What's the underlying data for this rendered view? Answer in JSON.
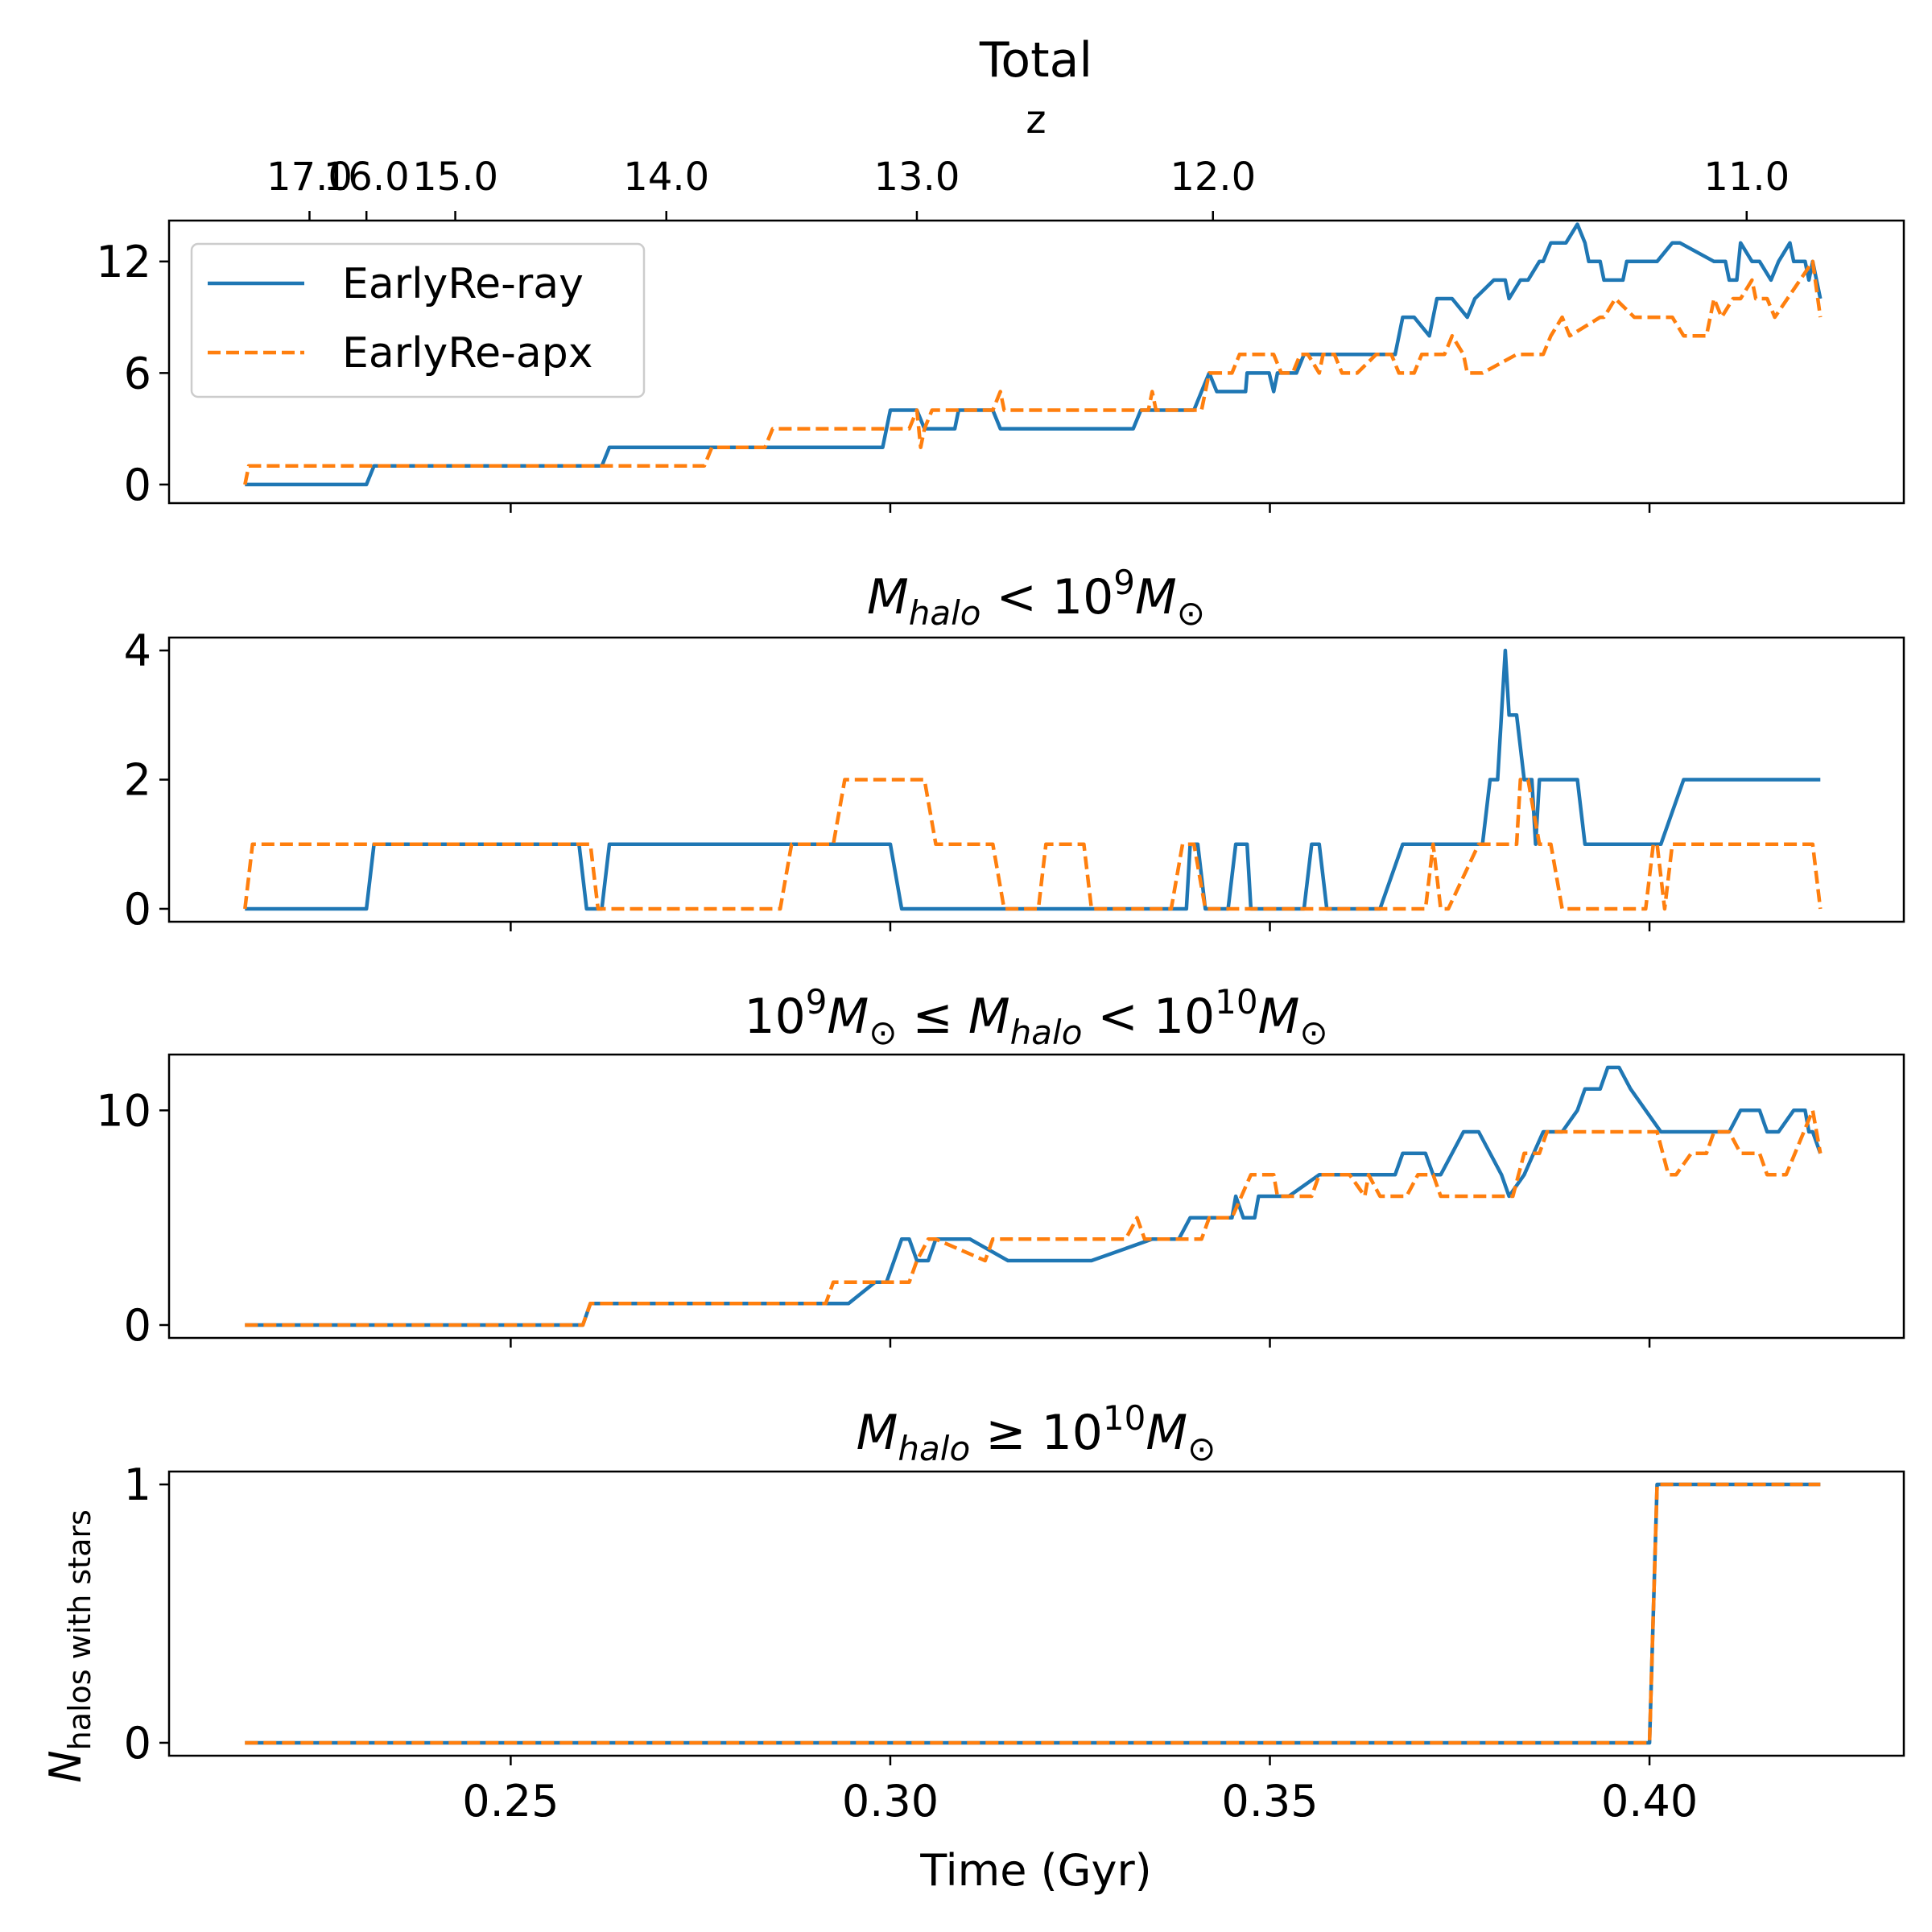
{
  "chart_data": [
    {
      "type": "line",
      "title": "Total",
      "secondary_xlabel": "z",
      "secondary_xticks": [
        "17.0",
        "16.0",
        "15.0",
        "14.0",
        "13.0",
        "12.0",
        "11.0"
      ],
      "secondary_xtick_times": [
        0.2235,
        0.231,
        0.2427,
        0.2705,
        0.3035,
        0.3425,
        0.4128
      ],
      "xlim": [
        0.205,
        0.4335
      ],
      "ylim": [
        -1,
        14.2
      ],
      "yticks": [
        0,
        6,
        12
      ],
      "legend": {
        "position": "top-left",
        "entries": [
          "EarlyRe-ray",
          "EarlyRe-apx"
        ]
      },
      "series": [
        {
          "name": "EarlyRe-ray",
          "color": "#1f77b4",
          "dash": "solid",
          "x": [
            0.215,
            0.231,
            0.232,
            0.262,
            0.263,
            0.299,
            0.3,
            0.3035,
            0.3045,
            0.3085,
            0.309,
            0.3135,
            0.3145,
            0.319,
            0.32,
            0.332,
            0.333,
            0.34,
            0.341,
            0.342,
            0.343,
            0.344,
            0.3468,
            0.347,
            0.3499,
            0.3505,
            0.351,
            0.352,
            0.3535,
            0.3545,
            0.357,
            0.3575,
            0.3665,
            0.3675,
            0.369,
            0.371,
            0.372,
            0.374,
            0.376,
            0.377,
            0.3795,
            0.381,
            0.3815,
            0.383,
            0.384,
            0.3855,
            0.386,
            0.387,
            0.389,
            0.3905,
            0.3915,
            0.392,
            0.3935,
            0.394,
            0.3965,
            0.397,
            0.398,
            0.3985,
            0.399,
            0.401,
            0.403,
            0.404,
            0.4085,
            0.41,
            0.4105,
            0.4115,
            0.412,
            0.4135,
            0.4145,
            0.416,
            0.417,
            0.4185,
            0.419,
            0.4205,
            0.421,
            0.4215,
            0.4225
          ],
          "values": [
            0,
            0,
            1,
            1,
            2,
            2,
            4,
            4,
            3,
            3,
            4,
            4,
            3,
            3,
            3,
            3,
            4,
            4,
            5,
            6,
            5,
            5,
            5,
            6,
            6,
            5,
            6,
            6,
            6,
            7,
            7,
            7,
            7,
            9,
            9,
            8,
            10,
            10,
            9,
            10,
            11,
            11,
            10,
            11,
            11,
            12,
            12,
            13,
            13,
            14,
            13,
            12,
            12,
            11,
            11,
            12,
            12,
            12,
            12,
            12,
            13,
            13,
            12,
            12,
            11,
            11,
            13,
            12,
            12,
            11,
            12,
            13,
            12,
            12,
            11,
            12,
            10
          ]
        },
        {
          "name": "EarlyRe-apx",
          "color": "#ff7f0e",
          "dash": "dashed",
          "x": [
            0.215,
            0.2155,
            0.2755,
            0.2765,
            0.2835,
            0.2845,
            0.3025,
            0.3035,
            0.304,
            0.3045,
            0.3055,
            0.3135,
            0.3145,
            0.315,
            0.334,
            0.3345,
            0.335,
            0.341,
            0.342,
            0.345,
            0.346,
            0.3505,
            0.3515,
            0.353,
            0.354,
            0.355,
            0.3565,
            0.357,
            0.3585,
            0.3595,
            0.361,
            0.3615,
            0.364,
            0.3645,
            0.366,
            0.367,
            0.369,
            0.37,
            0.371,
            0.373,
            0.374,
            0.3755,
            0.376,
            0.378,
            0.3825,
            0.3835,
            0.3845,
            0.386,
            0.387,
            0.3885,
            0.3895,
            0.3935,
            0.394,
            0.3955,
            0.398,
            0.399,
            0.4005,
            0.401,
            0.402,
            0.403,
            0.4045,
            0.4055,
            0.4075,
            0.4085,
            0.4095,
            0.411,
            0.412,
            0.4135,
            0.414,
            0.4155,
            0.4165,
            0.4215,
            0.4225
          ],
          "values": [
            0,
            1,
            1,
            2,
            2,
            3,
            3,
            4,
            2,
            3,
            4,
            4,
            5,
            4,
            4,
            5,
            4,
            4,
            6,
            6,
            7,
            7,
            6,
            6,
            7,
            7,
            6,
            7,
            7,
            6,
            6,
            6,
            7,
            7,
            7,
            6,
            6,
            7,
            7,
            7,
            8,
            7,
            6,
            6,
            7,
            7,
            7,
            7,
            8,
            9,
            8,
            9,
            9,
            10,
            9,
            9,
            9,
            9,
            9,
            9,
            8,
            8,
            8,
            10,
            9,
            10,
            10,
            11,
            10,
            10,
            9,
            12,
            9
          ]
        }
      ]
    },
    {
      "type": "line",
      "title": "M_halo < 10^9 M_⊙",
      "xlim": [
        0.205,
        0.4335
      ],
      "ylim": [
        -0.2,
        4.2
      ],
      "yticks": [
        0,
        2,
        4
      ],
      "series": [
        {
          "name": "EarlyRe-ray",
          "color": "#1f77b4",
          "dash": "solid",
          "x": [
            0.215,
            0.231,
            0.232,
            0.259,
            0.26,
            0.262,
            0.263,
            0.3,
            0.3015,
            0.339,
            0.3395,
            0.3405,
            0.3415,
            0.3445,
            0.3455,
            0.347,
            0.3475,
            0.3485,
            0.3545,
            0.3555,
            0.3565,
            0.3575,
            0.3635,
            0.3645,
            0.3675,
            0.378,
            0.379,
            0.3795,
            0.38,
            0.381,
            0.381,
            0.3815,
            0.382,
            0.3825,
            0.3835,
            0.3845,
            0.385,
            0.3855,
            0.3875,
            0.39,
            0.3905,
            0.3915,
            0.4005,
            0.4015,
            0.4045,
            0.4225
          ],
          "values": [
            0,
            0,
            1,
            1,
            0,
            0,
            1,
            1,
            0,
            0,
            1,
            1,
            0,
            0,
            1,
            1,
            0,
            0,
            0,
            1,
            1,
            0,
            0,
            0,
            1,
            1,
            2,
            2,
            2,
            4,
            4,
            3,
            3,
            3,
            2,
            2,
            1,
            2,
            2,
            2,
            2,
            1,
            1,
            1,
            2,
            2
          ]
        },
        {
          "name": "EarlyRe-apx",
          "color": "#ff7f0e",
          "dash": "dashed",
          "x": [
            0.215,
            0.216,
            0.2605,
            0.2615,
            0.2765,
            0.278,
            0.2855,
            0.287,
            0.2925,
            0.294,
            0.3045,
            0.306,
            0.3135,
            0.315,
            0.3195,
            0.3205,
            0.3255,
            0.3265,
            0.337,
            0.3385,
            0.34,
            0.3415,
            0.3445,
            0.3455,
            0.3555,
            0.3565,
            0.3625,
            0.3635,
            0.3665,
            0.3675,
            0.3705,
            0.3715,
            0.3725,
            0.3735,
            0.3775,
            0.3795,
            0.3825,
            0.383,
            0.384,
            0.3855,
            0.387,
            0.3885,
            0.3915,
            0.3975,
            0.3985,
            0.3995,
            0.4005,
            0.401,
            0.402,
            0.403,
            0.4045,
            0.4055,
            0.4065,
            0.4215,
            0.4225
          ],
          "values": [
            0,
            1,
            1,
            0,
            0,
            0,
            0,
            1,
            1,
            2,
            2,
            1,
            1,
            0,
            0,
            1,
            1,
            0,
            0,
            1,
            1,
            0,
            0,
            0,
            0,
            0,
            0,
            0,
            0,
            0,
            0,
            1,
            0,
            0,
            1,
            1,
            1,
            2,
            2,
            1,
            1,
            0,
            0,
            0,
            0,
            0,
            1,
            1,
            0,
            1,
            1,
            1,
            1,
            1,
            0
          ]
        }
      ]
    },
    {
      "type": "line",
      "title": "10^9 M_⊙ ≤ M_halo < 10^10 M_⊙",
      "xlim": [
        0.205,
        0.4335
      ],
      "ylim": [
        -0.6,
        12.6
      ],
      "yticks": [
        0,
        10
      ],
      "series": [
        {
          "name": "EarlyRe-ray",
          "color": "#1f77b4",
          "dash": "solid",
          "x": [
            0.215,
            0.2595,
            0.2605,
            0.2935,
            0.2945,
            0.298,
            0.2995,
            0.3005,
            0.3015,
            0.3025,
            0.3035,
            0.305,
            0.306,
            0.3075,
            0.3085,
            0.3095,
            0.3105,
            0.3155,
            0.3165,
            0.3245,
            0.3265,
            0.3345,
            0.3355,
            0.338,
            0.3395,
            0.3405,
            0.345,
            0.3455,
            0.3465,
            0.348,
            0.3485,
            0.3515,
            0.3525,
            0.3565,
            0.3575,
            0.3665,
            0.3675,
            0.3705,
            0.3715,
            0.3725,
            0.3755,
            0.3775,
            0.3805,
            0.3815,
            0.3835,
            0.386,
            0.3875,
            0.3885,
            0.3905,
            0.3915,
            0.3935,
            0.3945,
            0.396,
            0.3975,
            0.3995,
            0.4015,
            0.4105,
            0.412,
            0.413,
            0.4145,
            0.4155,
            0.417,
            0.419,
            0.4205,
            0.421,
            0.4215,
            0.4225
          ],
          "values": [
            0,
            0,
            1,
            1,
            1,
            2,
            2,
            3,
            4,
            4,
            3,
            3,
            4,
            4,
            4,
            4,
            4,
            3,
            3,
            3,
            3,
            4,
            4,
            4,
            5,
            5,
            5,
            6,
            5,
            5,
            6,
            6,
            6,
            7,
            7,
            7,
            8,
            8,
            7,
            7,
            9,
            9,
            7,
            6,
            7,
            9,
            9,
            9,
            10,
            11,
            11,
            12,
            12,
            11,
            10,
            9,
            9,
            10,
            10,
            10,
            9,
            9,
            10,
            10,
            9,
            9,
            8
          ]
        },
        {
          "name": "EarlyRe-apx",
          "color": "#ff7f0e",
          "dash": "dashed",
          "x": [
            0.215,
            0.2595,
            0.2605,
            0.2915,
            0.2925,
            0.2975,
            0.2985,
            0.3025,
            0.3035,
            0.305,
            0.306,
            0.3125,
            0.3135,
            0.3165,
            0.3175,
            0.331,
            0.3325,
            0.3335,
            0.341,
            0.342,
            0.345,
            0.3475,
            0.3505,
            0.351,
            0.354,
            0.3555,
            0.3565,
            0.3575,
            0.3605,
            0.3625,
            0.363,
            0.3645,
            0.368,
            0.3695,
            0.3715,
            0.3725,
            0.379,
            0.3805,
            0.3815,
            0.382,
            0.3835,
            0.3855,
            0.3865,
            0.3905,
            0.3925,
            0.3945,
            0.3965,
            0.399,
            0.401,
            0.4025,
            0.4035,
            0.4055,
            0.4075,
            0.4085,
            0.4105,
            0.412,
            0.413,
            0.4145,
            0.4155,
            0.418,
            0.4215,
            0.4225
          ],
          "values": [
            0,
            0,
            1,
            1,
            2,
            2,
            2,
            2,
            3,
            4,
            4,
            3,
            4,
            4,
            4,
            4,
            5,
            4,
            4,
            5,
            5,
            7,
            7,
            6,
            6,
            6,
            7,
            7,
            7,
            6,
            7,
            6,
            6,
            7,
            7,
            6,
            6,
            6,
            6,
            6,
            8,
            8,
            9,
            9,
            9,
            9,
            9,
            9,
            9,
            7,
            7,
            8,
            8,
            9,
            9,
            8,
            8,
            8,
            7,
            7,
            10,
            8
          ]
        }
      ]
    },
    {
      "type": "line",
      "title": "M_halo ≥ 10^10 M_⊙",
      "xlabel": "Time (Gyr)",
      "ylabel": "N_halos with stars",
      "xlim": [
        0.205,
        0.4335
      ],
      "xticks": [
        0.25,
        0.3,
        0.35,
        0.4
      ],
      "xtick_labels": [
        "0.25",
        "0.30",
        "0.35",
        "0.40"
      ],
      "ylim": [
        -0.05,
        1.05
      ],
      "yticks": [
        0,
        1
      ],
      "series": [
        {
          "name": "EarlyRe-ray",
          "color": "#1f77b4",
          "dash": "solid",
          "x": [
            0.215,
            0.4,
            0.401,
            0.4225
          ],
          "values": [
            0,
            0,
            1,
            1
          ]
        },
        {
          "name": "EarlyRe-apx",
          "color": "#ff7f0e",
          "dash": "dashed",
          "x": [
            0.215,
            0.4,
            0.401,
            0.4225
          ],
          "values": [
            0,
            0,
            1,
            1
          ]
        }
      ]
    }
  ]
}
